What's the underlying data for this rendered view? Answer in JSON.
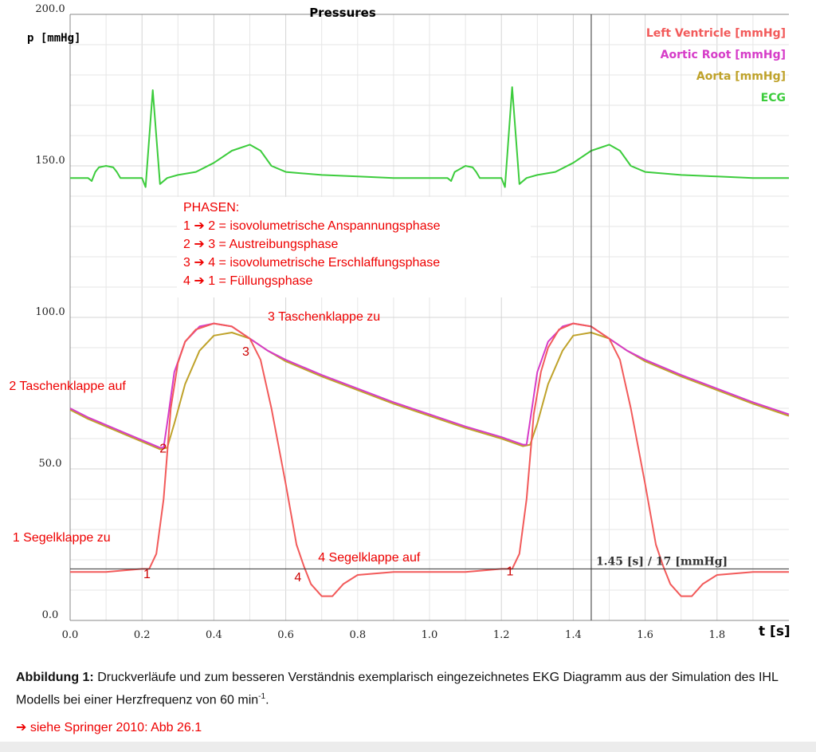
{
  "chart_data": {
    "type": "line",
    "title": "Pressures",
    "ylabel": "p [mmHg]",
    "xlabel": "t [s]",
    "xlim": [
      0.0,
      2.0
    ],
    "ylim": [
      0.0,
      200.0
    ],
    "x_ticks": [
      "0.0",
      "0.2",
      "0.4",
      "0.6",
      "0.8",
      "1.0",
      "1.2",
      "1.4",
      "1.6",
      "1.8"
    ],
    "y_ticks": [
      "0.0",
      "50.0",
      "100.0",
      "150.0",
      "200.0"
    ],
    "grid": true,
    "legend_position": "top-right",
    "colors": {
      "left_ventricle": "#f25a5a",
      "aortic_root": "#d63cc8",
      "aorta": "#bfa22a",
      "ecg": "#3ccc3c"
    },
    "series": [
      {
        "name": "Left Ventricle [mmHg]",
        "key": "left_ventricle",
        "points": [
          [
            0.0,
            16
          ],
          [
            0.05,
            16
          ],
          [
            0.1,
            16
          ],
          [
            0.15,
            16.5
          ],
          [
            0.2,
            17
          ],
          [
            0.22,
            17
          ],
          [
            0.24,
            22
          ],
          [
            0.26,
            40
          ],
          [
            0.28,
            70
          ],
          [
            0.3,
            85
          ],
          [
            0.32,
            92
          ],
          [
            0.35,
            96
          ],
          [
            0.4,
            98
          ],
          [
            0.45,
            97
          ],
          [
            0.5,
            93
          ],
          [
            0.53,
            86
          ],
          [
            0.56,
            70
          ],
          [
            0.6,
            45
          ],
          [
            0.63,
            25
          ],
          [
            0.65,
            18
          ],
          [
            0.67,
            12
          ],
          [
            0.7,
            8
          ],
          [
            0.73,
            8
          ],
          [
            0.76,
            12
          ],
          [
            0.8,
            15
          ],
          [
            0.9,
            16
          ],
          [
            1.0,
            16
          ],
          [
            1.1,
            16
          ],
          [
            1.2,
            17
          ],
          [
            1.23,
            17
          ],
          [
            1.25,
            22
          ],
          [
            1.27,
            40
          ],
          [
            1.29,
            68
          ],
          [
            1.31,
            82
          ],
          [
            1.33,
            90
          ],
          [
            1.36,
            96
          ],
          [
            1.4,
            98
          ],
          [
            1.45,
            97
          ],
          [
            1.5,
            93
          ],
          [
            1.53,
            86
          ],
          [
            1.56,
            70
          ],
          [
            1.6,
            45
          ],
          [
            1.63,
            25
          ],
          [
            1.65,
            18
          ],
          [
            1.67,
            12
          ],
          [
            1.7,
            8
          ],
          [
            1.73,
            8
          ],
          [
            1.76,
            12
          ],
          [
            1.8,
            15
          ],
          [
            1.9,
            16
          ],
          [
            2.0,
            16
          ]
        ]
      },
      {
        "name": "Aortic Root [mmHg]",
        "key": "aortic_root",
        "points": [
          [
            0.0,
            70
          ],
          [
            0.05,
            67
          ],
          [
            0.1,
            64.5
          ],
          [
            0.15,
            62
          ],
          [
            0.2,
            59.5
          ],
          [
            0.25,
            57
          ],
          [
            0.26,
            57
          ],
          [
            0.27,
            65
          ],
          [
            0.29,
            82
          ],
          [
            0.32,
            92
          ],
          [
            0.36,
            97
          ],
          [
            0.4,
            98
          ],
          [
            0.45,
            97
          ],
          [
            0.5,
            93
          ],
          [
            0.55,
            89
          ],
          [
            0.6,
            86
          ],
          [
            0.7,
            81
          ],
          [
            0.8,
            76.5
          ],
          [
            0.9,
            72
          ],
          [
            1.0,
            68
          ],
          [
            1.1,
            64
          ],
          [
            1.2,
            60.5
          ],
          [
            1.26,
            58
          ],
          [
            1.27,
            58
          ],
          [
            1.28,
            66
          ],
          [
            1.3,
            82
          ],
          [
            1.33,
            92
          ],
          [
            1.37,
            97
          ],
          [
            1.4,
            98
          ],
          [
            1.45,
            97
          ],
          [
            1.5,
            93
          ],
          [
            1.55,
            89
          ],
          [
            1.6,
            86
          ],
          [
            1.7,
            81
          ],
          [
            1.8,
            76.5
          ],
          [
            1.9,
            72
          ],
          [
            2.0,
            68
          ]
        ]
      },
      {
        "name": "Aorta [mmHg]",
        "key": "aorta",
        "points": [
          [
            0.0,
            69.5
          ],
          [
            0.05,
            66.5
          ],
          [
            0.1,
            64
          ],
          [
            0.15,
            61.5
          ],
          [
            0.2,
            59
          ],
          [
            0.25,
            56.5
          ],
          [
            0.27,
            57
          ],
          [
            0.29,
            65
          ],
          [
            0.32,
            78
          ],
          [
            0.36,
            89
          ],
          [
            0.4,
            94
          ],
          [
            0.45,
            95
          ],
          [
            0.5,
            93
          ],
          [
            0.55,
            89
          ],
          [
            0.6,
            85.5
          ],
          [
            0.7,
            80.5
          ],
          [
            0.8,
            76
          ],
          [
            0.9,
            71.5
          ],
          [
            1.0,
            67.5
          ],
          [
            1.1,
            63.5
          ],
          [
            1.2,
            60
          ],
          [
            1.26,
            57.5
          ],
          [
            1.28,
            58
          ],
          [
            1.3,
            65
          ],
          [
            1.33,
            78
          ],
          [
            1.37,
            89
          ],
          [
            1.4,
            94
          ],
          [
            1.45,
            95
          ],
          [
            1.5,
            93
          ],
          [
            1.55,
            89
          ],
          [
            1.6,
            85.5
          ],
          [
            1.7,
            80.5
          ],
          [
            1.8,
            76
          ],
          [
            1.9,
            71.5
          ],
          [
            2.0,
            67.5
          ]
        ]
      },
      {
        "name": "ECG",
        "key": "ecg",
        "points": [
          [
            0.0,
            146
          ],
          [
            0.05,
            146
          ],
          [
            0.06,
            145
          ],
          [
            0.07,
            148
          ],
          [
            0.08,
            149.5
          ],
          [
            0.1,
            150
          ],
          [
            0.12,
            149.5
          ],
          [
            0.13,
            148
          ],
          [
            0.14,
            146
          ],
          [
            0.2,
            146
          ],
          [
            0.21,
            143
          ],
          [
            0.23,
            175
          ],
          [
            0.25,
            144
          ],
          [
            0.27,
            146
          ],
          [
            0.3,
            147
          ],
          [
            0.35,
            148
          ],
          [
            0.4,
            151
          ],
          [
            0.45,
            155
          ],
          [
            0.5,
            157
          ],
          [
            0.53,
            155
          ],
          [
            0.56,
            150
          ],
          [
            0.6,
            148
          ],
          [
            0.7,
            147
          ],
          [
            0.8,
            146.5
          ],
          [
            0.9,
            146
          ],
          [
            1.0,
            146
          ],
          [
            1.05,
            146
          ],
          [
            1.06,
            145
          ],
          [
            1.07,
            148
          ],
          [
            1.1,
            150
          ],
          [
            1.12,
            149.5
          ],
          [
            1.13,
            148
          ],
          [
            1.14,
            146
          ],
          [
            1.2,
            146
          ],
          [
            1.21,
            143
          ],
          [
            1.23,
            176
          ],
          [
            1.25,
            144
          ],
          [
            1.27,
            146
          ],
          [
            1.3,
            147
          ],
          [
            1.35,
            148
          ],
          [
            1.4,
            151
          ],
          [
            1.45,
            155
          ],
          [
            1.5,
            157
          ],
          [
            1.53,
            155
          ],
          [
            1.56,
            150
          ],
          [
            1.6,
            148
          ],
          [
            1.7,
            147
          ],
          [
            1.8,
            146.5
          ],
          [
            1.9,
            146
          ],
          [
            2.0,
            146
          ]
        ]
      }
    ],
    "cursor": {
      "x": 1.45,
      "y": 17,
      "label": "1.45 [s] / 17 [mmHg]"
    },
    "annotations": {
      "phases_title": "PHASEN:",
      "phases": [
        "1 ➔ 2 = isovolumetrische Anspannungsphase",
        "2 ➔ 3 = Austreibungsphase",
        "3 ➔ 4 = isovolumetrische Erschlaffungsphase",
        "4 ➔ 1 = Füllungsphase"
      ],
      "labels": [
        {
          "text": "3 Taschenklappe zu",
          "x": 0.55,
          "y": 99
        },
        {
          "text": "2 Taschenklappe auf",
          "x": -0.17,
          "y": 76
        },
        {
          "text": "1 Segelklappe zu",
          "x": -0.16,
          "y": 26
        },
        {
          "text": "4 Segelklappe auf",
          "x": 0.69,
          "y": 19.5
        }
      ],
      "markers": [
        {
          "text": "1",
          "x": 0.215,
          "y": 15.5
        },
        {
          "text": "2",
          "x": 0.26,
          "y": 57
        },
        {
          "text": "3",
          "x": 0.49,
          "y": 89
        },
        {
          "text": "4",
          "x": 0.635,
          "y": 14.5
        },
        {
          "text": "1",
          "x": 1.225,
          "y": 16.5
        }
      ]
    }
  },
  "caption": {
    "label": "Abbildung 1:",
    "text_before": " Druckverläufe und zum besseren Verständnis exemplarisch eingezeichnetes EKG Diagramm aus der Simulation des IHL Modells bei einer Herzfrequenz von 60 min",
    "superscript": "-1",
    "text_after": "."
  },
  "reference": "➔ siehe Springer 2010: Abb 26.1"
}
